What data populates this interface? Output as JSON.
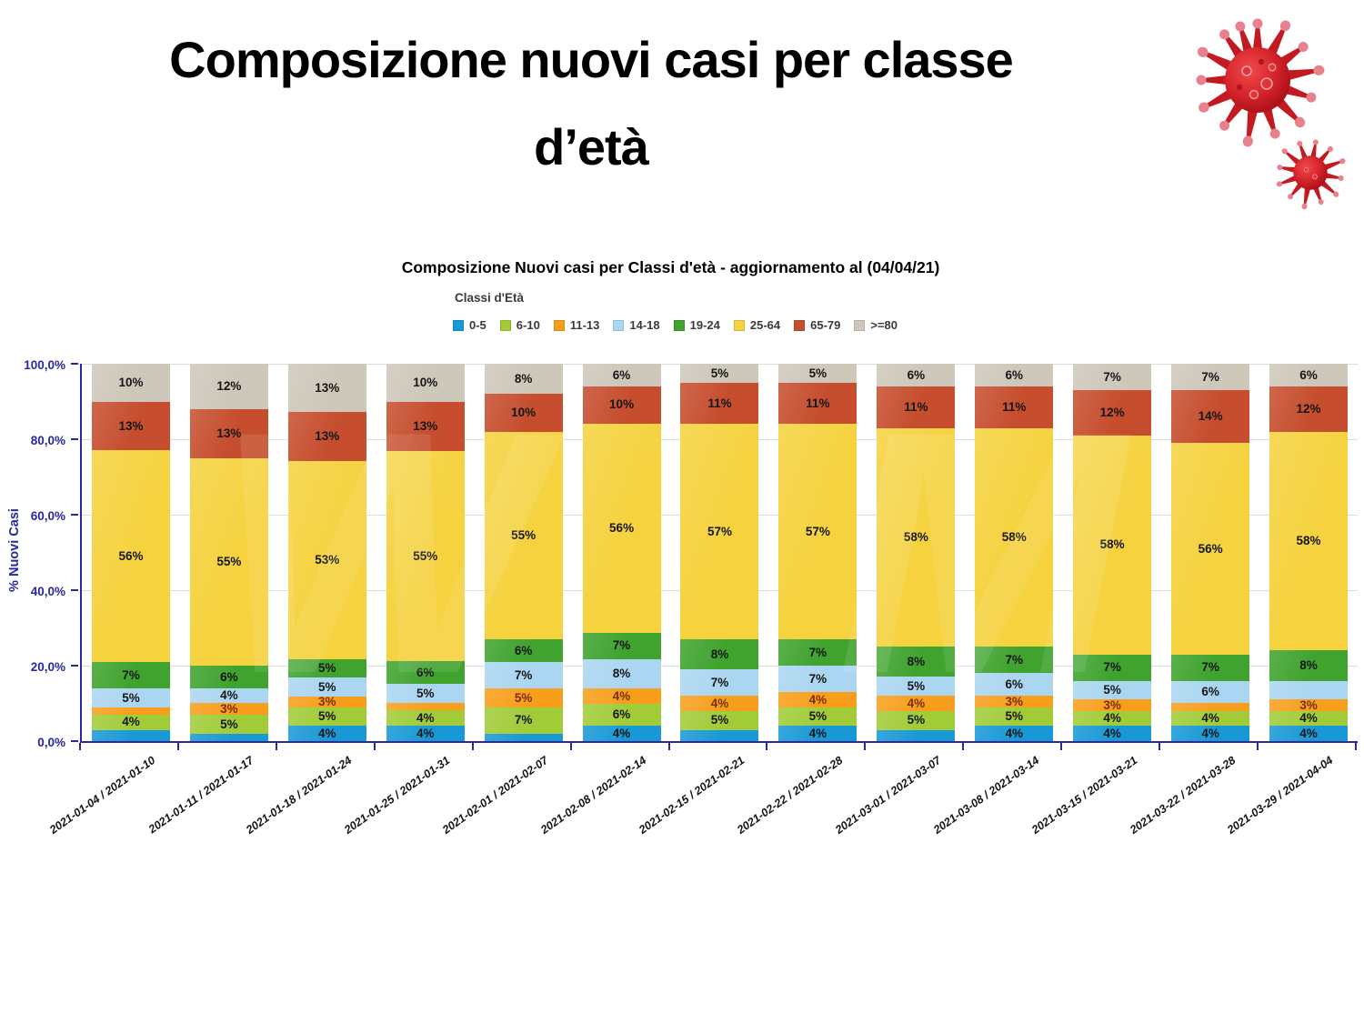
{
  "page": {
    "title_line1": "Composizione nuovi casi per classe",
    "title_line2": "d’età"
  },
  "chart_data": {
    "type": "stacked-bar-100",
    "title": "Composizione Nuovi casi per Classi d'età - aggiornamento al (04/04/21)",
    "legend_title": "Classi d'Età",
    "legend_position": "top",
    "ylabel": "% Nuovi Casi",
    "ylim": [
      0,
      100
    ],
    "grid": "horizontal",
    "ytick_labels": [
      "0,0%",
      "20,0%",
      "40,0%",
      "60,0%",
      "80,0%",
      "100,0%"
    ],
    "categories": [
      "2021-01-04 / 2021-01-10",
      "2021-01-11 / 2021-01-17",
      "2021-01-18 / 2021-01-24",
      "2021-01-25 / 2021-01-31",
      "2021-02-01 / 2021-02-07",
      "2021-02-08 / 2021-02-14",
      "2021-02-15 / 2021-02-21",
      "2021-02-22 / 2021-02-28",
      "2021-03-01 / 2021-03-07",
      "2021-03-08 / 2021-03-14",
      "2021-03-15 / 2021-03-21",
      "2021-03-22 / 2021-03-28",
      "2021-03-29 / 2021-04-04"
    ],
    "series": [
      {
        "name": "0-5",
        "color": "#1899D5",
        "values": [
          3,
          2,
          4,
          4,
          2,
          4,
          3,
          4,
          3,
          4,
          4,
          4,
          4
        ],
        "labels": [
          "",
          "",
          "4%",
          "4%",
          "",
          "4%",
          "",
          "4%",
          "",
          "4%",
          "4%",
          "4%",
          "4%"
        ]
      },
      {
        "name": "6-10",
        "color": "#A1CC38",
        "values": [
          4,
          5,
          5,
          4,
          7,
          6,
          5,
          5,
          5,
          5,
          4,
          4,
          4
        ],
        "labels": [
          "4%",
          "5%",
          "5%",
          "4%",
          "7%",
          "6%",
          "5%",
          "5%",
          "5%",
          "5%",
          "4%",
          "4%",
          "4%"
        ]
      },
      {
        "name": "11-13",
        "color": "#F79F1C",
        "values": [
          2,
          3,
          3,
          2,
          5,
          4,
          4,
          4,
          4,
          3,
          3,
          2,
          3
        ],
        "labels": [
          "",
          "3%",
          "3%",
          "",
          "5%",
          "4%",
          "4%",
          "4%",
          "4%",
          "3%",
          "3%",
          "",
          "3%"
        ]
      },
      {
        "name": "14-18",
        "color": "#ABD6F1",
        "values": [
          5,
          4,
          5,
          5,
          7,
          8,
          7,
          7,
          5,
          6,
          5,
          6,
          5
        ],
        "labels": [
          "5%",
          "4%",
          "5%",
          "5%",
          "7%",
          "8%",
          "7%",
          "7%",
          "5%",
          "6%",
          "5%",
          "6%",
          ""
        ]
      },
      {
        "name": "19-24",
        "color": "#3FA32E",
        "values": [
          7,
          6,
          5,
          6,
          6,
          7,
          8,
          7,
          8,
          7,
          7,
          7,
          8
        ],
        "labels": [
          "7%",
          "6%",
          "5%",
          "6%",
          "6%",
          "7%",
          "8%",
          "7%",
          "8%",
          "7%",
          "7%",
          "7%",
          "8%"
        ]
      },
      {
        "name": "25-64",
        "color": "#F5D23E",
        "values": [
          56,
          55,
          53,
          55,
          55,
          56,
          57,
          57,
          58,
          58,
          58,
          56,
          58
        ],
        "labels": [
          "56%",
          "55%",
          "53%",
          "55%",
          "55%",
          "56%",
          "57%",
          "57%",
          "58%",
          "58%",
          "58%",
          "56%",
          "58%"
        ]
      },
      {
        "name": "65-79",
        "color": "#C64E2E",
        "values": [
          13,
          13,
          13,
          13,
          10,
          10,
          11,
          11,
          11,
          11,
          12,
          14,
          12
        ],
        "labels": [
          "13%",
          "13%",
          "13%",
          "13%",
          "10%",
          "10%",
          "11%",
          "11%",
          "11%",
          "11%",
          "12%",
          "14%",
          "12%"
        ]
      },
      {
        "name": ">=80",
        "color": "#CEC8BB",
        "values": [
          10,
          12,
          13,
          10,
          8,
          6,
          5,
          5,
          6,
          6,
          7,
          7,
          6
        ],
        "labels": [
          "10%",
          "12%",
          "13%",
          "10%",
          "8%",
          "6%",
          "5%",
          "5%",
          "6%",
          "6%",
          "7%",
          "7%",
          "6%"
        ]
      }
    ]
  },
  "style_colors": {
    "axis": "#2828A0",
    "grid": "#DCDCDC",
    "label_on_orange": "#7A2E00",
    "virus_body": "#C01820",
    "virus_tip": "#E8808E"
  },
  "watermark_text": "W M"
}
